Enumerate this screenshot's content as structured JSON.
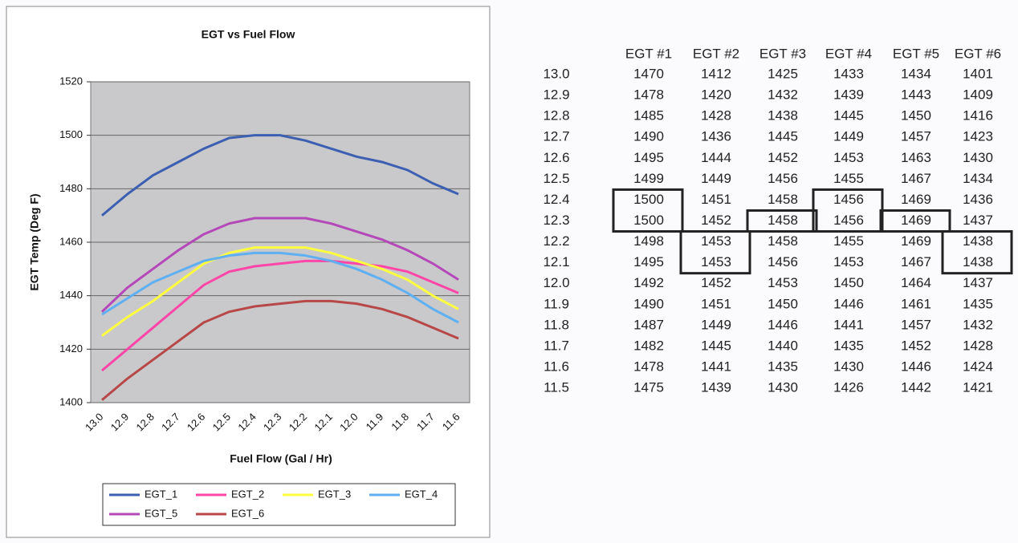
{
  "chart_data": {
    "type": "line",
    "title": "EGT vs Fuel Flow",
    "x_label": "Fuel Flow (Gal / Hr)",
    "y_label": "EGT Temp (Deg F)",
    "categories": [
      "13.0",
      "12.9",
      "12.8",
      "12.7",
      "12.6",
      "12.5",
      "12.4",
      "12.3",
      "12.2",
      "12.1",
      "12.0",
      "11.9",
      "11.8",
      "11.7",
      "11.6"
    ],
    "ylim": [
      1400,
      1520
    ],
    "yticks": [
      1400,
      1420,
      1440,
      1460,
      1480,
      1500,
      1520
    ],
    "grid": true,
    "series": [
      {
        "name": "EGT_1",
        "color": "#3d5fb2",
        "values": [
          1470,
          1478,
          1485,
          1490,
          1495,
          1499,
          1500,
          1500,
          1498,
          1495,
          1492,
          1490,
          1487,
          1482,
          1478
        ]
      },
      {
        "name": "EGT_2",
        "color": "#ff45a8",
        "values": [
          1412,
          1420,
          1428,
          1436,
          1444,
          1449,
          1451,
          1452,
          1453,
          1453,
          1452,
          1451,
          1449,
          1445,
          1441
        ]
      },
      {
        "name": "EGT_3",
        "color": "#ffff40",
        "values": [
          1425,
          1432,
          1438,
          1445,
          1452,
          1456,
          1458,
          1458,
          1458,
          1456,
          1453,
          1450,
          1446,
          1440,
          1435
        ]
      },
      {
        "name": "EGT_4",
        "color": "#5fb0f2",
        "values": [
          1433,
          1439,
          1445,
          1449,
          1453,
          1455,
          1456,
          1456,
          1455,
          1453,
          1450,
          1446,
          1441,
          1435,
          1430
        ]
      },
      {
        "name": "EGT_5",
        "color": "#b548b8",
        "values": [
          1434,
          1443,
          1450,
          1457,
          1463,
          1467,
          1469,
          1469,
          1469,
          1467,
          1464,
          1461,
          1457,
          1452,
          1446
        ]
      },
      {
        "name": "EGT_6",
        "color": "#b84848",
        "values": [
          1401,
          1409,
          1416,
          1423,
          1430,
          1434,
          1436,
          1437,
          1438,
          1438,
          1437,
          1435,
          1432,
          1428,
          1424
        ]
      }
    ]
  },
  "table": {
    "columns": [
      "EGT #1",
      "EGT #2",
      "EGT #3",
      "EGT #4",
      "EGT #5",
      "EGT #6"
    ],
    "rows": [
      [
        "13.0",
        1470,
        1412,
        1425,
        1433,
        1434,
        1401
      ],
      [
        "12.9",
        1478,
        1420,
        1432,
        1439,
        1443,
        1409
      ],
      [
        "12.8",
        1485,
        1428,
        1438,
        1445,
        1450,
        1416
      ],
      [
        "12.7",
        1490,
        1436,
        1445,
        1449,
        1457,
        1423
      ],
      [
        "12.6",
        1495,
        1444,
        1452,
        1453,
        1463,
        1430
      ],
      [
        "12.5",
        1499,
        1449,
        1456,
        1455,
        1467,
        1434
      ],
      [
        "12.4",
        1500,
        1451,
        1458,
        1456,
        1469,
        1436
      ],
      [
        "12.3",
        1500,
        1452,
        1458,
        1456,
        1469,
        1437
      ],
      [
        "12.2",
        1498,
        1453,
        1458,
        1455,
        1469,
        1438
      ],
      [
        "12.1",
        1495,
        1453,
        1456,
        1453,
        1467,
        1438
      ],
      [
        "12.0",
        1492,
        1452,
        1453,
        1450,
        1464,
        1437
      ],
      [
        "11.9",
        1490,
        1451,
        1450,
        1446,
        1461,
        1435
      ],
      [
        "11.8",
        1487,
        1449,
        1446,
        1441,
        1457,
        1432
      ],
      [
        "11.7",
        1482,
        1445,
        1440,
        1435,
        1452,
        1428
      ],
      [
        "11.6",
        1478,
        1441,
        1435,
        1430,
        1446,
        1424
      ],
      [
        "11.5",
        1475,
        1439,
        1430,
        1426,
        1442,
        1421
      ]
    ]
  }
}
